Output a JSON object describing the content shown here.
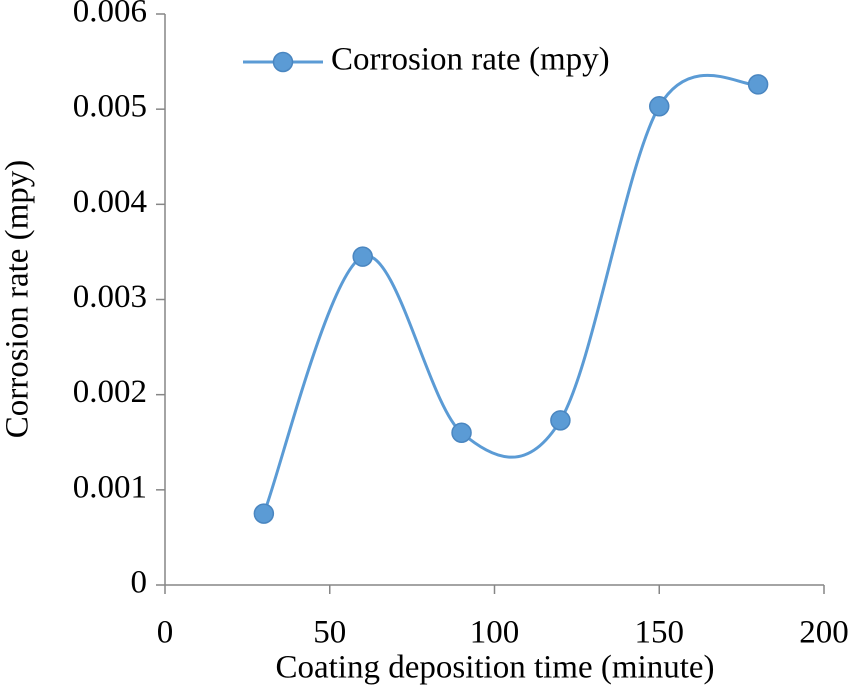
{
  "chart_data": {
    "type": "line",
    "x_label": "Coating deposition time (minute)",
    "y_label": "Corrosion rate (mpy)",
    "x": [
      30,
      60,
      90,
      120,
      150,
      180
    ],
    "series": [
      {
        "name": "Corrosion rate (mpy)",
        "color": "#5b9bd5",
        "values": [
          0.00075,
          0.00345,
          0.0016,
          0.00173,
          0.00503,
          0.00526
        ]
      }
    ],
    "xlim": [
      0,
      200
    ],
    "xticks": [
      0,
      50,
      100,
      150,
      200
    ],
    "ylim": [
      0,
      0.006
    ],
    "yticks": [
      0,
      0.001,
      0.002,
      0.003,
      0.004,
      0.005,
      0.006
    ],
    "smooth": true,
    "grid": false,
    "legend": "top"
  }
}
